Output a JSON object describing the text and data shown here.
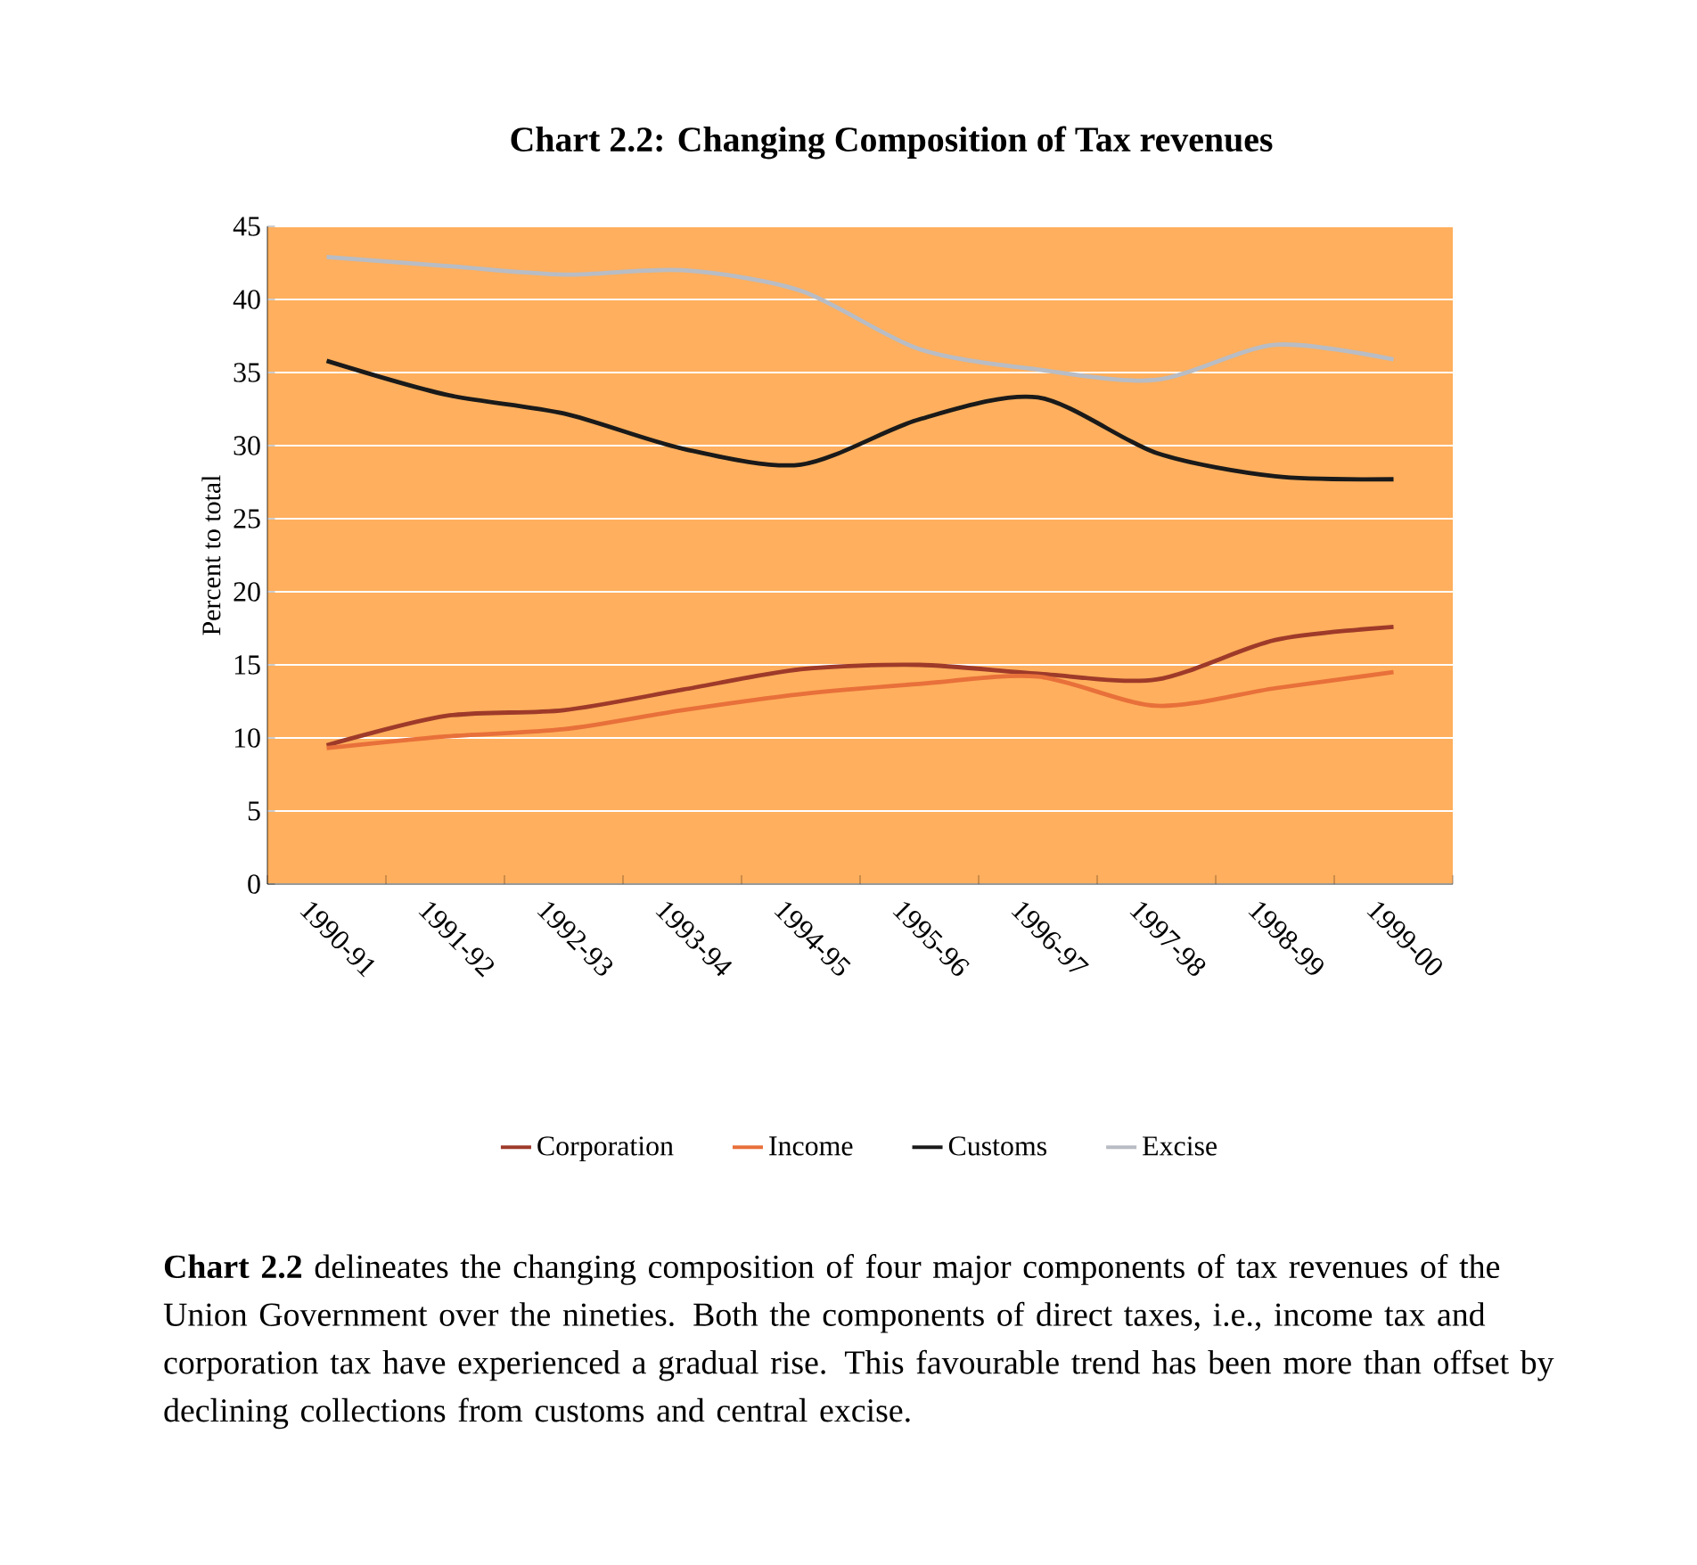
{
  "chart_data": {
    "type": "line",
    "title": "Chart 2.2: Changing Composition of Tax revenues",
    "ylabel": "Percent to total",
    "categories": [
      "1990-91",
      "1991-92",
      "1992-93",
      "1993-94",
      "1994-95",
      "1995-96",
      "1996-97",
      "1997-98",
      "1998-99",
      "1999-00"
    ],
    "series": [
      {
        "name": "Corporation",
        "color": "#9e3a2a",
        "values": [
          9.5,
          11.5,
          11.9,
          13.3,
          14.7,
          15.0,
          14.4,
          14.0,
          16.7,
          17.6
        ]
      },
      {
        "name": "Income",
        "color": "#e8703a",
        "values": [
          9.3,
          10.1,
          10.6,
          11.9,
          13.0,
          13.7,
          14.2,
          12.2,
          13.4,
          14.5
        ]
      },
      {
        "name": "Customs",
        "color": "#1a1a1a",
        "values": [
          35.8,
          33.5,
          32.2,
          29.8,
          28.7,
          31.8,
          33.3,
          29.5,
          27.9,
          27.7
        ]
      },
      {
        "name": "Excise",
        "color": "#b8bcc4",
        "values": [
          42.9,
          42.3,
          41.7,
          42.0,
          40.6,
          36.6,
          35.2,
          34.5,
          36.9,
          35.9
        ]
      }
    ],
    "ylim": [
      0,
      45
    ],
    "yticks": [
      0,
      5,
      10,
      15,
      20,
      25,
      30,
      35,
      40,
      45
    ],
    "grid": "y",
    "legend": "bottom",
    "marker": "none",
    "line_style": "solid",
    "annotations": [
      "**Chart 2.2** delineates the changing composition of four major components of tax revenues of the Union Government over the nineties. Both the components of direct taxes, i.e., income tax and corporation tax have experienced a gradual rise. This favourable trend has been more than offset by declining collections from customs and central excise."
    ]
  }
}
